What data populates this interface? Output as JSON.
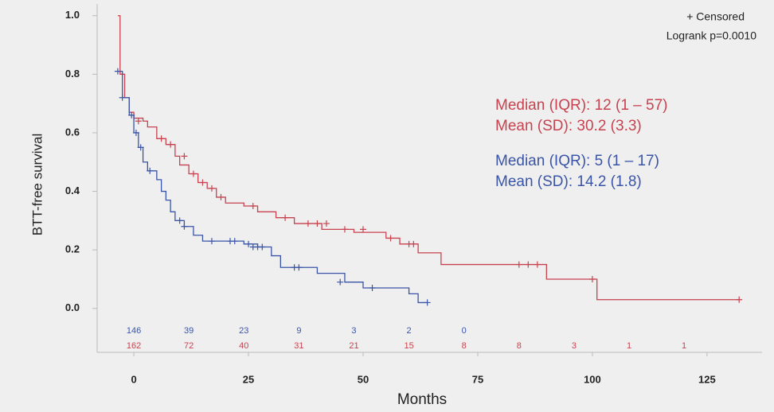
{
  "chart_data": {
    "type": "step",
    "xlabel": "Months",
    "ylabel": "BTT-free survival",
    "xlim": [
      -8,
      137
    ],
    "ylim": [
      -0.15,
      1.04
    ],
    "xticks": [
      0,
      25,
      50,
      75,
      100,
      125
    ],
    "yticks": [
      {
        "value": 0,
        "label": "0.0"
      },
      {
        "value": 0.2,
        "label": "0.2"
      },
      {
        "value": 0.4,
        "label": "0.4"
      },
      {
        "value": 0.6,
        "label": "0.6"
      },
      {
        "value": 0.8,
        "label": "0.8"
      },
      {
        "value": 1,
        "label": "1.0"
      }
    ],
    "annotations": [
      "+ Censored",
      "Logrank p=0.0010"
    ],
    "at_risk_x": [
      0,
      12,
      24,
      36,
      48,
      60,
      72,
      84,
      96,
      108,
      120
    ],
    "series": [
      {
        "color": "#c8424f",
        "x": [
          -3.5,
          -3,
          -2,
          -1,
          0,
          2,
          3,
          5,
          7,
          9,
          10,
          12,
          14,
          16,
          18,
          20,
          24,
          27,
          31,
          35,
          41,
          48,
          55,
          58,
          62,
          67,
          90,
          101,
          132
        ],
        "values": [
          1.0,
          0.8,
          0.72,
          0.67,
          0.65,
          0.64,
          0.62,
          0.58,
          0.56,
          0.52,
          0.49,
          0.46,
          0.43,
          0.41,
          0.38,
          0.36,
          0.35,
          0.33,
          0.31,
          0.29,
          0.27,
          0.26,
          0.24,
          0.22,
          0.19,
          0.15,
          0.1,
          0.03,
          0.03
        ],
        "censor_x": [
          1,
          6,
          8,
          11,
          13,
          15,
          17,
          19,
          26,
          33,
          38,
          40,
          42,
          46,
          50,
          56,
          60,
          61,
          84,
          86,
          88,
          100,
          132
        ],
        "censor_y": [
          0.64,
          0.58,
          0.56,
          0.52,
          0.46,
          0.43,
          0.41,
          0.38,
          0.35,
          0.31,
          0.29,
          0.29,
          0.29,
          0.27,
          0.27,
          0.24,
          0.22,
          0.22,
          0.15,
          0.15,
          0.15,
          0.1,
          0.03
        ],
        "text": [
          "Median (IQR): 12 (1 – 57)",
          "Mean (SD): 30.2 (3.3)"
        ],
        "at_risk": [
          162,
          72,
          40,
          31,
          21,
          15,
          8,
          8,
          3,
          1,
          1
        ]
      },
      {
        "color": "#3a55a8",
        "x": [
          -3.5,
          -2.5,
          -1,
          0,
          1,
          2,
          3,
          5,
          6,
          7,
          8,
          9,
          11,
          13,
          15,
          24,
          27,
          30,
          32,
          40,
          46,
          50,
          60,
          62,
          64
        ],
        "values": [
          0.81,
          0.72,
          0.66,
          0.6,
          0.55,
          0.5,
          0.47,
          0.44,
          0.4,
          0.37,
          0.33,
          0.3,
          0.28,
          0.25,
          0.23,
          0.22,
          0.21,
          0.18,
          0.14,
          0.12,
          0.09,
          0.07,
          0.05,
          0.02,
          0.02
        ],
        "censor_x": [
          -3.5,
          -2.5,
          -0.5,
          0.5,
          1.5,
          3.5,
          10,
          11,
          17,
          21,
          22,
          25,
          26,
          27,
          28,
          35,
          36,
          45,
          52,
          64
        ],
        "censor_y": [
          0.81,
          0.72,
          0.66,
          0.6,
          0.55,
          0.47,
          0.3,
          0.28,
          0.23,
          0.23,
          0.23,
          0.22,
          0.21,
          0.21,
          0.21,
          0.14,
          0.14,
          0.09,
          0.07,
          0.02
        ],
        "text": [
          "Median (IQR): 5 (1 – 17)",
          "Mean (SD): 14.2 (1.8)"
        ],
        "at_risk": [
          146,
          39,
          23,
          9,
          3,
          2,
          0
        ]
      }
    ]
  }
}
